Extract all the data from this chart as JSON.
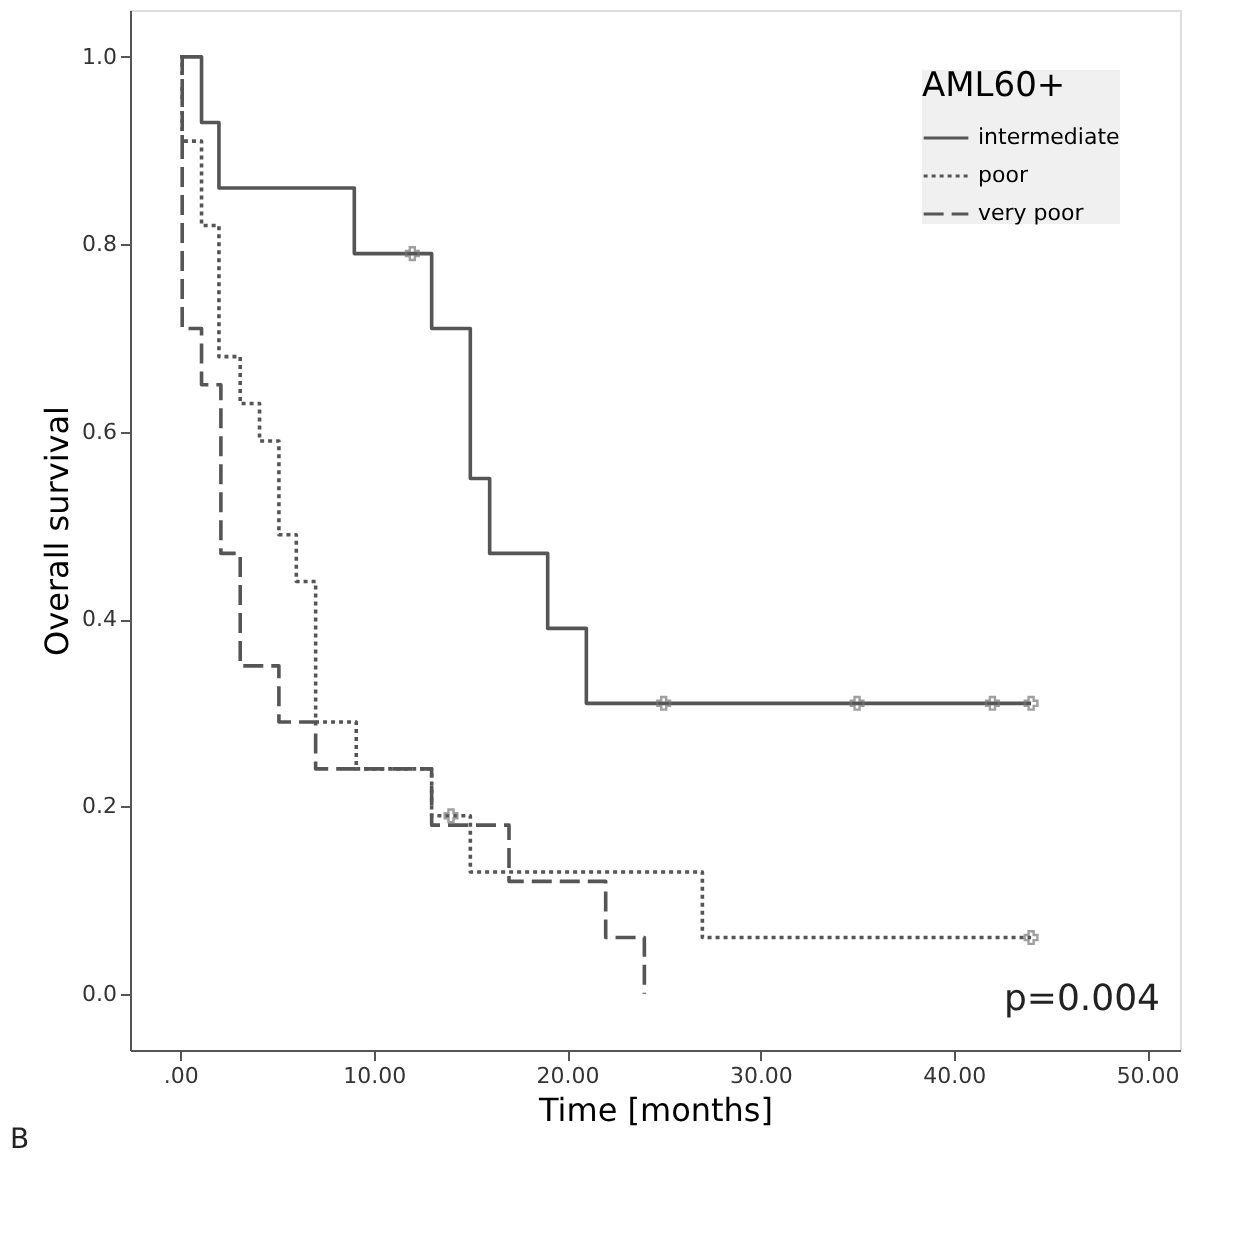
{
  "chart_data": {
    "type": "step",
    "xlabel": "Time [months]",
    "ylabel": "Overall survival",
    "legend_title": "AML60+",
    "legend": "top right",
    "xlim": [
      -2.6,
      51.7
    ],
    "ylim": [
      -0.06,
      1.05
    ],
    "xticks": [
      {
        "value": 0,
        "label": ".00"
      },
      {
        "value": 10,
        "label": "10.00"
      },
      {
        "value": 20,
        "label": "20.00"
      },
      {
        "value": 30,
        "label": "30.00"
      },
      {
        "value": 40,
        "label": "40.00"
      },
      {
        "value": 50,
        "label": "50.00"
      }
    ],
    "yticks": [
      {
        "value": 0,
        "label": "0.0"
      },
      {
        "value": 0.2,
        "label": "0.2"
      },
      {
        "value": 0.4,
        "label": "0.4"
      },
      {
        "value": 0.6,
        "label": "0.6"
      },
      {
        "value": 0.8,
        "label": "0.8"
      },
      {
        "value": 1,
        "label": "1.0"
      }
    ],
    "series": [
      {
        "name": "intermediate",
        "color": "#555555",
        "line_style": "solid",
        "x": [
          0,
          1.1,
          2,
          9,
          13,
          15,
          16,
          19,
          21,
          44
        ],
        "values": [
          1,
          0.93,
          0.86,
          0.79,
          0.71,
          0.55,
          0.47,
          0.39,
          0.31,
          0.31
        ]
      },
      {
        "name": "poor",
        "color": "#555555",
        "line_style": "dotted",
        "x": [
          0,
          0.1,
          1.1,
          2,
          3.1,
          4.1,
          5.1,
          6,
          7,
          9.1,
          13,
          15,
          27,
          44
        ],
        "values": [
          1,
          0.91,
          0.82,
          0.68,
          0.63,
          0.59,
          0.49,
          0.44,
          0.29,
          0.24,
          0.19,
          0.13,
          0.06,
          0.06
        ]
      },
      {
        "name": "very poor",
        "color": "#555555",
        "line_style": "dashed",
        "x": [
          0,
          0.1,
          1.1,
          2.1,
          3.1,
          5.1,
          7,
          13,
          17,
          22,
          24
        ],
        "values": [
          1,
          0.71,
          0.65,
          0.47,
          0.35,
          0.29,
          0.24,
          0.18,
          0.12,
          0.06,
          0
        ]
      },
      {
        "type": "scatter",
        "marker": "cross",
        "color": "#777777",
        "x": [
          12,
          25,
          35,
          42,
          44,
          14,
          44
        ],
        "values": [
          0.79,
          0.31,
          0.31,
          0.31,
          0.31,
          0.19,
          0.06
        ]
      }
    ],
    "annotations": [
      "p=0.004",
      "B"
    ]
  }
}
